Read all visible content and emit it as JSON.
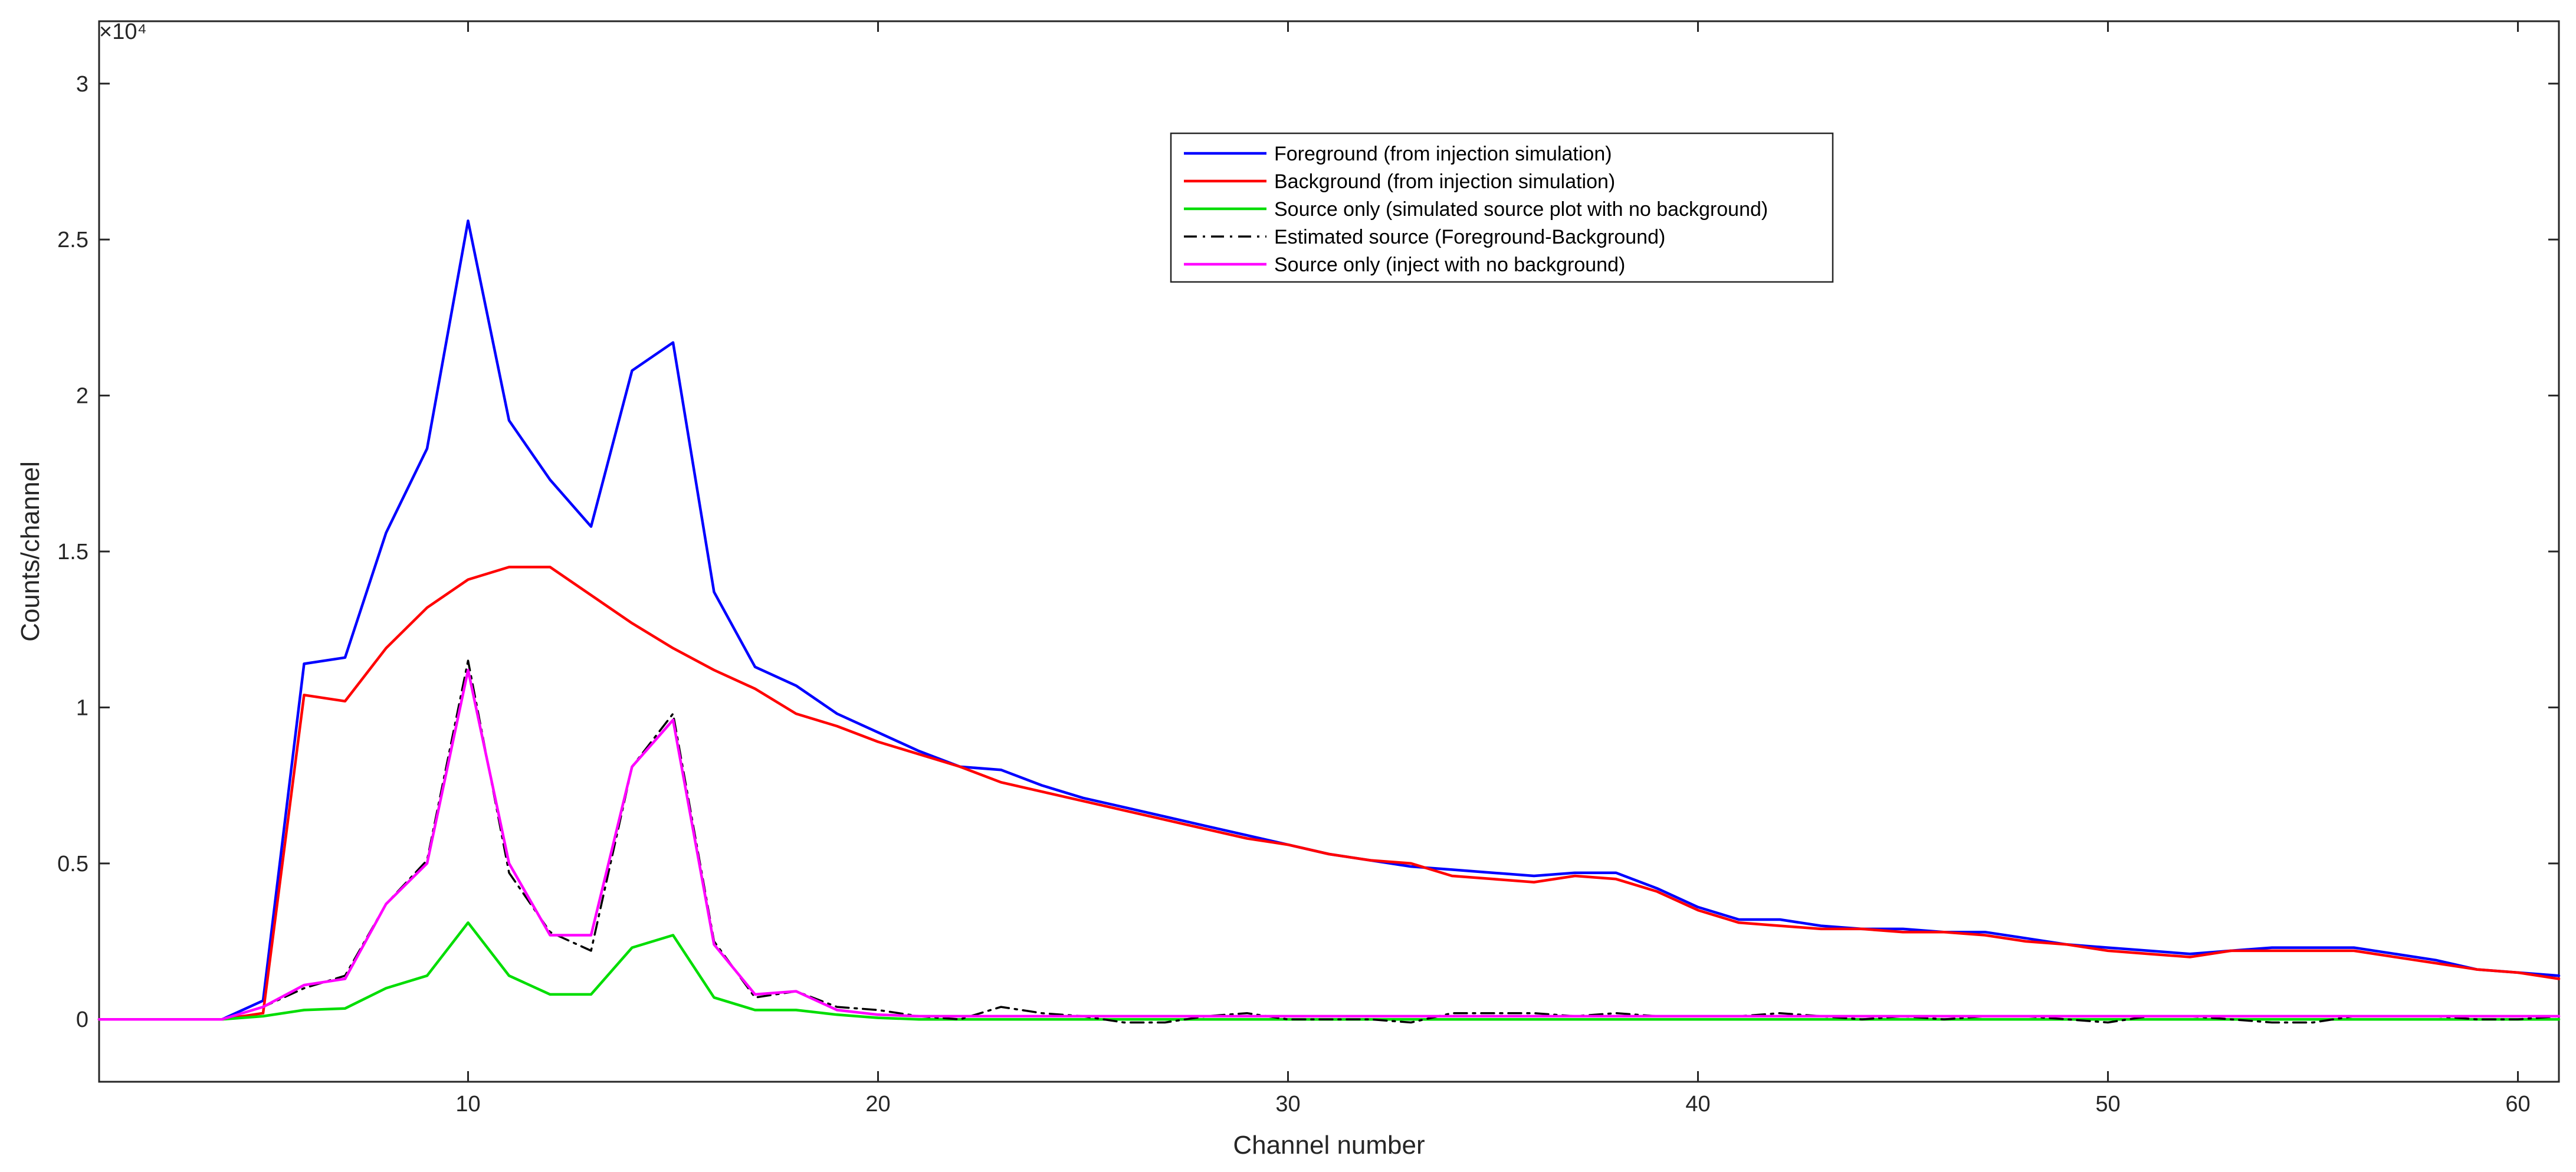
{
  "chart_data": {
    "type": "line",
    "title": "",
    "xlabel": "Channel number",
    "ylabel": "Counts/channel",
    "y_exponent_label": "×10⁴",
    "xlim": [
      1,
      61
    ],
    "ylim": [
      -0.2,
      3.2
    ],
    "x_ticks": [
      10,
      20,
      30,
      40,
      50,
      60
    ],
    "x_tick_labels": [
      "10",
      "20",
      "30",
      "40",
      "50",
      "60"
    ],
    "y_ticks": [
      0,
      0.5,
      1,
      1.5,
      2,
      2.5,
      3
    ],
    "y_tick_labels": [
      "0",
      "0.5",
      "1",
      "1.5",
      "2",
      "2.5",
      "3"
    ],
    "y_unit_note": "values in units of 10^4 counts",
    "grid": false,
    "legend_position": "top-center",
    "x": [
      1,
      2,
      3,
      4,
      5,
      6,
      7,
      8,
      9,
      10,
      11,
      12,
      13,
      14,
      15,
      16,
      17,
      18,
      19,
      20,
      21,
      22,
      23,
      24,
      25,
      26,
      27,
      28,
      29,
      30,
      31,
      32,
      33,
      34,
      35,
      36,
      37,
      38,
      39,
      40,
      41,
      42,
      43,
      44,
      45,
      46,
      47,
      48,
      49,
      50,
      51,
      52,
      53,
      54,
      55,
      56,
      57,
      58,
      59,
      60,
      61
    ],
    "series": [
      {
        "name": "Foreground (from injection simulation)",
        "color": "#0000ff",
        "style": "solid",
        "values": [
          0,
          0,
          0,
          0,
          0.06,
          1.14,
          1.16,
          1.56,
          1.83,
          2.56,
          1.92,
          1.73,
          1.58,
          2.08,
          2.17,
          1.37,
          1.13,
          1.07,
          0.98,
          0.92,
          0.86,
          0.81,
          0.8,
          0.75,
          0.71,
          0.68,
          0.65,
          0.62,
          0.59,
          0.56,
          0.53,
          0.51,
          0.49,
          0.48,
          0.47,
          0.46,
          0.47,
          0.47,
          0.42,
          0.36,
          0.32,
          0.32,
          0.3,
          0.29,
          0.29,
          0.28,
          0.28,
          0.26,
          0.24,
          0.23,
          0.22,
          0.21,
          0.22,
          0.23,
          0.23,
          0.23,
          0.21,
          0.19,
          0.16,
          0.15,
          0.14
        ]
      },
      {
        "name": "Background (from injection simulation)",
        "color": "#ff0000",
        "style": "solid",
        "values": [
          0,
          0,
          0,
          0,
          0.02,
          1.04,
          1.02,
          1.19,
          1.32,
          1.41,
          1.45,
          1.45,
          1.36,
          1.27,
          1.19,
          1.12,
          1.06,
          0.98,
          0.94,
          0.89,
          0.85,
          0.81,
          0.76,
          0.73,
          0.7,
          0.67,
          0.64,
          0.61,
          0.58,
          0.56,
          0.53,
          0.51,
          0.5,
          0.46,
          0.45,
          0.44,
          0.46,
          0.45,
          0.41,
          0.35,
          0.31,
          0.3,
          0.29,
          0.29,
          0.28,
          0.28,
          0.27,
          0.25,
          0.24,
          0.22,
          0.21,
          0.2,
          0.22,
          0.22,
          0.22,
          0.22,
          0.2,
          0.18,
          0.16,
          0.15,
          0.13
        ]
      },
      {
        "name": "Source only (simulated source plot with no background)",
        "color": "#00dd00",
        "style": "solid",
        "values": [
          0,
          0,
          0,
          0,
          0.01,
          0.03,
          0.035,
          0.1,
          0.14,
          0.31,
          0.14,
          0.08,
          0.08,
          0.23,
          0.27,
          0.07,
          0.03,
          0.03,
          0.015,
          0.005,
          0,
          0,
          0,
          0,
          0,
          0,
          0,
          0,
          0,
          0,
          0,
          0,
          0,
          0,
          0,
          0,
          0,
          0,
          0,
          0,
          0,
          0,
          0,
          0,
          0,
          0,
          0,
          0,
          0,
          0,
          0,
          0,
          0,
          0,
          0,
          0,
          0,
          0,
          0,
          0,
          0
        ]
      },
      {
        "name": "Estimated source (Foreground-Background)",
        "color": "#000000",
        "style": "dash-dot",
        "values": [
          0,
          0,
          0,
          0,
          0.04,
          0.1,
          0.14,
          0.37,
          0.51,
          1.15,
          0.47,
          0.28,
          0.22,
          0.81,
          0.98,
          0.25,
          0.07,
          0.09,
          0.04,
          0.03,
          0.01,
          0.0,
          0.04,
          0.02,
          0.01,
          -0.01,
          -0.01,
          0.01,
          0.02,
          0.0,
          0.0,
          0.0,
          -0.01,
          0.02,
          0.02,
          0.02,
          0.01,
          0.02,
          0.01,
          0.01,
          0.01,
          0.02,
          0.01,
          0.0,
          0.01,
          0.0,
          0.01,
          0.01,
          0.0,
          -0.01,
          0.01,
          0.01,
          0.0,
          -0.01,
          -0.01,
          0.01,
          0.01,
          0.01,
          0.0,
          0.0,
          0.01
        ]
      },
      {
        "name": "Source only (inject with no background)",
        "color": "#ff00ff",
        "style": "solid",
        "values": [
          0,
          0,
          0,
          0,
          0.04,
          0.11,
          0.13,
          0.37,
          0.5,
          1.12,
          0.5,
          0.27,
          0.27,
          0.81,
          0.96,
          0.24,
          0.08,
          0.09,
          0.03,
          0.015,
          0.01,
          0.01,
          0.01,
          0.01,
          0.01,
          0.01,
          0.01,
          0.01,
          0.01,
          0.01,
          0.01,
          0.01,
          0.01,
          0.01,
          0.01,
          0.01,
          0.01,
          0.01,
          0.01,
          0.01,
          0.01,
          0.01,
          0.01,
          0.01,
          0.01,
          0.01,
          0.01,
          0.01,
          0.01,
          0.01,
          0.01,
          0.01,
          0.01,
          0.01,
          0.01,
          0.01,
          0.01,
          0.01,
          0.01,
          0.01,
          0.01
        ]
      }
    ]
  }
}
